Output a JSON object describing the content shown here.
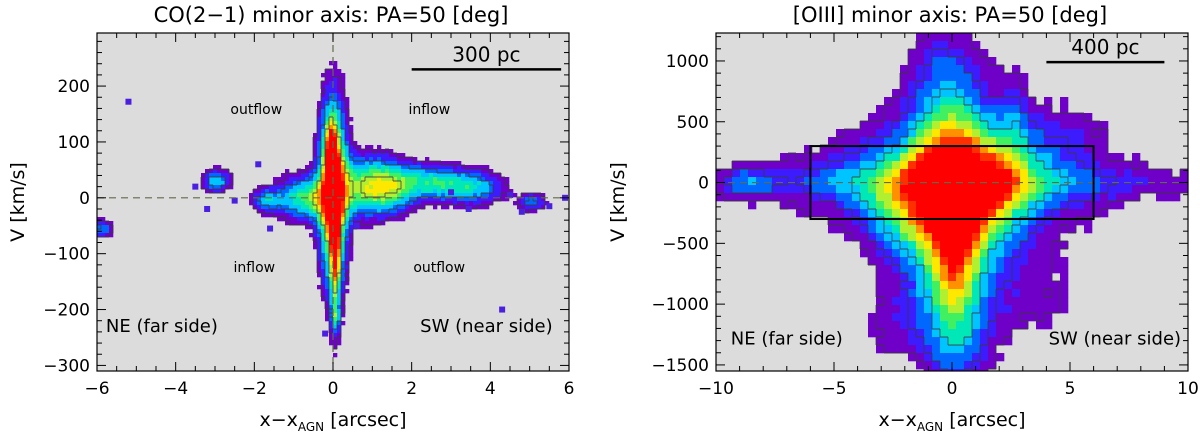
{
  "chart_data": [
    {
      "type": "heatmap",
      "title": "CO(2−1) minor axis: PA=50 [deg]",
      "xlabel_main": "x−x",
      "xlabel_sub": "AGN",
      "xlabel_unit": " [arcsec]",
      "ylabel": "V [km/s]",
      "xlim": [
        -6,
        6
      ],
      "ylim": [
        -310,
        295
      ],
      "xticks": [
        -6,
        -4,
        -2,
        0,
        2,
        4,
        6
      ],
      "yticks": [
        -300,
        -200,
        -100,
        0,
        100,
        200
      ],
      "xtick_labels": [
        "−6",
        "−4",
        "−2",
        "0",
        "2",
        "4",
        "6"
      ],
      "ytick_labels": [
        "−300",
        "−200",
        "−100",
        "0",
        "100",
        "200"
      ],
      "scalebar": {
        "label": "300 pc",
        "x_from": 2.0,
        "x_to": 5.8,
        "y": 230
      },
      "annotations": [
        {
          "text": "outflow",
          "x": -1.95,
          "y": 150
        },
        {
          "text": "inflow",
          "x": 2.45,
          "y": 150
        },
        {
          "text": "inflow",
          "x": -2.0,
          "y": -133
        },
        {
          "text": "outflow",
          "x": 2.7,
          "y": -133
        },
        {
          "text": "NE (far side)",
          "x": -4.35,
          "y": -240
        },
        {
          "text": "SW (near side)",
          "x": 3.9,
          "y": -240
        }
      ],
      "reference_lines": {
        "x": 0,
        "y": 0
      },
      "blobs": [
        {
          "x": 0.0,
          "y": 10,
          "sx": 0.25,
          "sy": 110,
          "amp": 0.9
        },
        {
          "x": 0.0,
          "y": 20,
          "sx": 0.09,
          "sy": 45,
          "amp": 0.55
        },
        {
          "x": 0.06,
          "y": -95,
          "sx": 0.09,
          "sy": 95,
          "amp": 0.5
        },
        {
          "x": -0.06,
          "y": 75,
          "sx": 0.09,
          "sy": 45,
          "amp": 0.45
        },
        {
          "x": -0.7,
          "y": 0,
          "sx": 0.55,
          "sy": 28,
          "amp": 0.5
        },
        {
          "x": 0.8,
          "y": 20,
          "sx": 0.5,
          "sy": 38,
          "amp": 0.5
        },
        {
          "x": 1.55,
          "y": 20,
          "sx": 0.45,
          "sy": 32,
          "amp": 0.42
        },
        {
          "x": 2.55,
          "y": 28,
          "sx": 0.55,
          "sy": 22,
          "amp": 0.4
        },
        {
          "x": 3.6,
          "y": 18,
          "sx": 0.55,
          "sy": 22,
          "amp": 0.38
        },
        {
          "x": -2.95,
          "y": 30,
          "sx": 0.25,
          "sy": 14,
          "amp": 0.42
        },
        {
          "x": -1.7,
          "y": -5,
          "sx": 0.25,
          "sy": 14,
          "amp": 0.32
        },
        {
          "x": 5.05,
          "y": -8,
          "sx": 0.25,
          "sy": 12,
          "amp": 0.32
        },
        {
          "x": -5.9,
          "y": -55,
          "sx": 0.22,
          "sy": 12,
          "amp": 0.32
        },
        {
          "x": 0.05,
          "y": -215,
          "sx": 0.08,
          "sy": 12,
          "amp": 0.22
        }
      ],
      "speckles": [
        {
          "x": -5.2,
          "y": 172
        },
        {
          "x": -3.5,
          "y": 20
        },
        {
          "x": -3.2,
          "y": -20
        },
        {
          "x": -2.5,
          "y": -5
        },
        {
          "x": -1.6,
          "y": -55
        },
        {
          "x": -1.9,
          "y": 60
        },
        {
          "x": -0.2,
          "y": -243
        },
        {
          "x": 0.6,
          "y": -50
        },
        {
          "x": 3.0,
          "y": 10
        },
        {
          "x": 4.5,
          "y": 5
        },
        {
          "x": 4.8,
          "y": -25
        },
        {
          "x": 5.5,
          "y": -15
        },
        {
          "x": 5.9,
          "y": 0
        },
        {
          "x": 3.45,
          "y": -20
        },
        {
          "x": 4.3,
          "y": -200
        }
      ],
      "colormap": [
        "#6e00c8",
        "#3c1bff",
        "#0068ff",
        "#00c4ff",
        "#00e8b8",
        "#40f060",
        "#b0f030",
        "#ffe800",
        "#ff9000",
        "#ff3000",
        "#ff0000"
      ],
      "threshold": 0.1,
      "contour_levels": [
        0.13,
        0.3,
        0.6
      ]
    },
    {
      "type": "heatmap",
      "title": "[OIII] minor axis: PA=50 [deg]",
      "xlabel_main": "x−x",
      "xlabel_sub": "AGN",
      "xlabel_unit": " [arcsec]",
      "ylabel": "V [km/s]",
      "xlim": [
        -10,
        10
      ],
      "ylim": [
        -1550,
        1230
      ],
      "xticks": [
        -10,
        -5,
        0,
        5,
        10
      ],
      "yticks": [
        -1500,
        -1000,
        -500,
        0,
        500,
        1000
      ],
      "xtick_labels": [
        "−10",
        "−5",
        "0",
        "5",
        "10"
      ],
      "ytick_labels": [
        "−1500",
        "−1000",
        "−500",
        "0",
        "500",
        "1000"
      ],
      "scalebar": {
        "label": "400 pc",
        "x_from": 4.0,
        "x_to": 9.0,
        "y": 990
      },
      "annotations": [
        {
          "text": "NE (far side)",
          "x": -7.0,
          "y": -1330
        },
        {
          "text": "SW (near side)",
          "x": 6.9,
          "y": -1330
        }
      ],
      "box": {
        "x0": -6,
        "x1": 6,
        "y0": -300,
        "y1": 300
      },
      "reference_lines": {
        "y": 0
      },
      "blobs": [
        {
          "x": 0.0,
          "y": -100,
          "sx": 1.2,
          "sy": 330,
          "amp": 0.45
        },
        {
          "x": 0.0,
          "y": 50,
          "sx": 3.2,
          "sy": 330,
          "amp": 0.3
        },
        {
          "x": 0.0,
          "y": -300,
          "sx": 1.6,
          "sy": 600,
          "amp": 0.35
        },
        {
          "x": 0.1,
          "y": -550,
          "sx": 0.6,
          "sy": 360,
          "amp": 0.3
        },
        {
          "x": 0.0,
          "y": -900,
          "sx": 1.0,
          "sy": 420,
          "amp": 0.22
        },
        {
          "x": 0.0,
          "y": 480,
          "sx": 1.0,
          "sy": 450,
          "amp": 0.2
        },
        {
          "x": 0.0,
          "y": 0,
          "sx": 10.0,
          "sy": 100,
          "amp": 0.14
        },
        {
          "x": 0.0,
          "y": 0,
          "sx": 4.5,
          "sy": 220,
          "amp": 0.2
        },
        {
          "x": -8.6,
          "y": 0,
          "sx": 0.7,
          "sy": 80,
          "amp": 0.2
        },
        {
          "x": -2.3,
          "y": -300,
          "sx": 1.0,
          "sy": 220,
          "amp": 0.18
        },
        {
          "x": 2.6,
          "y": 500,
          "sx": 0.5,
          "sy": 300,
          "amp": 0.15
        },
        {
          "x": 2.0,
          "y": -50,
          "sx": 1.1,
          "sy": 250,
          "amp": 0.18
        },
        {
          "x": -0.5,
          "y": 900,
          "sx": 1.0,
          "sy": 300,
          "amp": 0.12
        },
        {
          "x": 0.3,
          "y": -1350,
          "sx": 0.9,
          "sy": 250,
          "amp": 0.14
        },
        {
          "x": -2.5,
          "y": -1150,
          "sx": 1.1,
          "sy": 220,
          "amp": 0.1
        },
        {
          "x": 3.5,
          "y": -850,
          "sx": 1.5,
          "sy": 350,
          "amp": 0.1
        },
        {
          "x": 4.5,
          "y": 400,
          "sx": 1.5,
          "sy": 200,
          "amp": 0.1
        }
      ],
      "colormap": [
        "#6e00c8",
        "#3c1bff",
        "#0068ff",
        "#00c4ff",
        "#00e8b8",
        "#40f060",
        "#b0f030",
        "#ffe800",
        "#ff9000",
        "#ff3000",
        "#ff0000"
      ],
      "threshold": 0.075,
      "contour_levels": [
        0.09,
        0.2,
        0.38
      ]
    }
  ]
}
